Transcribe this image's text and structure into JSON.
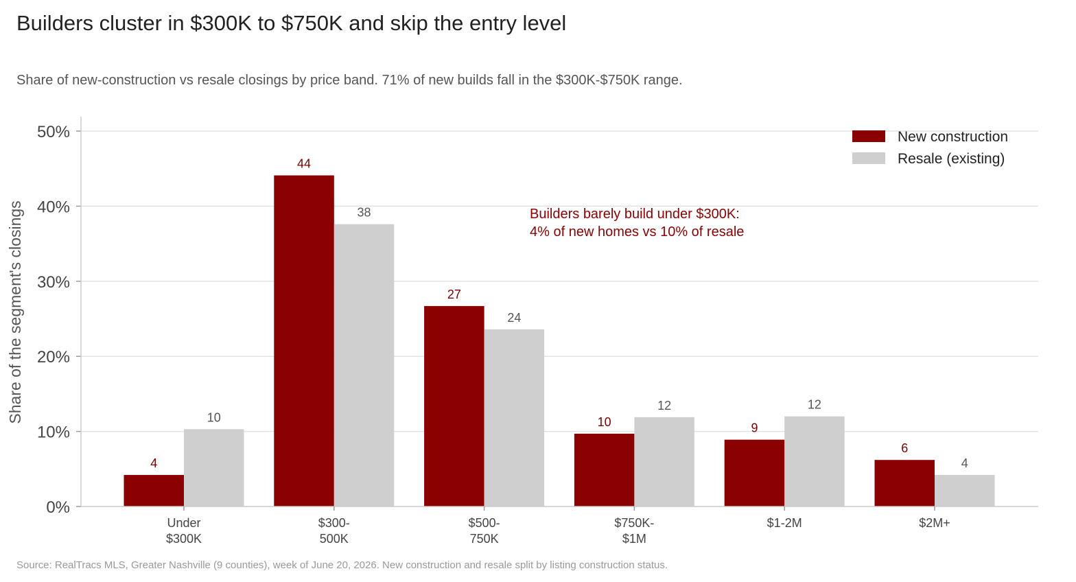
{
  "title": "Builders cluster in $300K to $750K and skip the entry level",
  "subtitle": "Share of new-construction vs resale closings by price band. 71% of new builds fall in the $300K-$750K range.",
  "source": "Source: RealTracs MLS, Greater Nashville (9 counties), week of June 20, 2026. New construction and resale split by listing construction status.",
  "colors": {
    "new": "#8b0000",
    "resale": "#cfcfcf",
    "grid": "#e3e3e3",
    "axis": "#cccccc"
  },
  "chart_data": {
    "type": "bar",
    "ylabel": "Share of the segment's closings",
    "ylim": [
      0,
      50
    ],
    "yticks": [
      0,
      10,
      20,
      30,
      40,
      50
    ],
    "ytick_labels": [
      "0%",
      "10%",
      "20%",
      "30%",
      "40%",
      "50%"
    ],
    "categories": [
      [
        "Under",
        "$300K"
      ],
      [
        "$300-",
        "500K"
      ],
      [
        "$500-",
        "750K"
      ],
      [
        "$750K-",
        "$1M"
      ],
      [
        "$1-2M"
      ],
      [
        "$2M+"
      ]
    ],
    "series": [
      {
        "name": "New construction",
        "values": [
          4.2,
          44.1,
          26.7,
          9.7,
          8.9,
          6.2
        ],
        "labels": [
          "4",
          "44",
          "27",
          "10",
          "9",
          "6"
        ]
      },
      {
        "name": "Resale (existing)",
        "values": [
          10.3,
          37.6,
          23.6,
          11.9,
          12.0,
          4.2
        ],
        "labels": [
          "10",
          "38",
          "24",
          "12",
          "12",
          "4"
        ]
      }
    ],
    "legend_position": "top-right",
    "grid": true,
    "annotation": [
      "Builders barely build under $300K:",
      "4% of new homes vs 10% of resale"
    ]
  }
}
